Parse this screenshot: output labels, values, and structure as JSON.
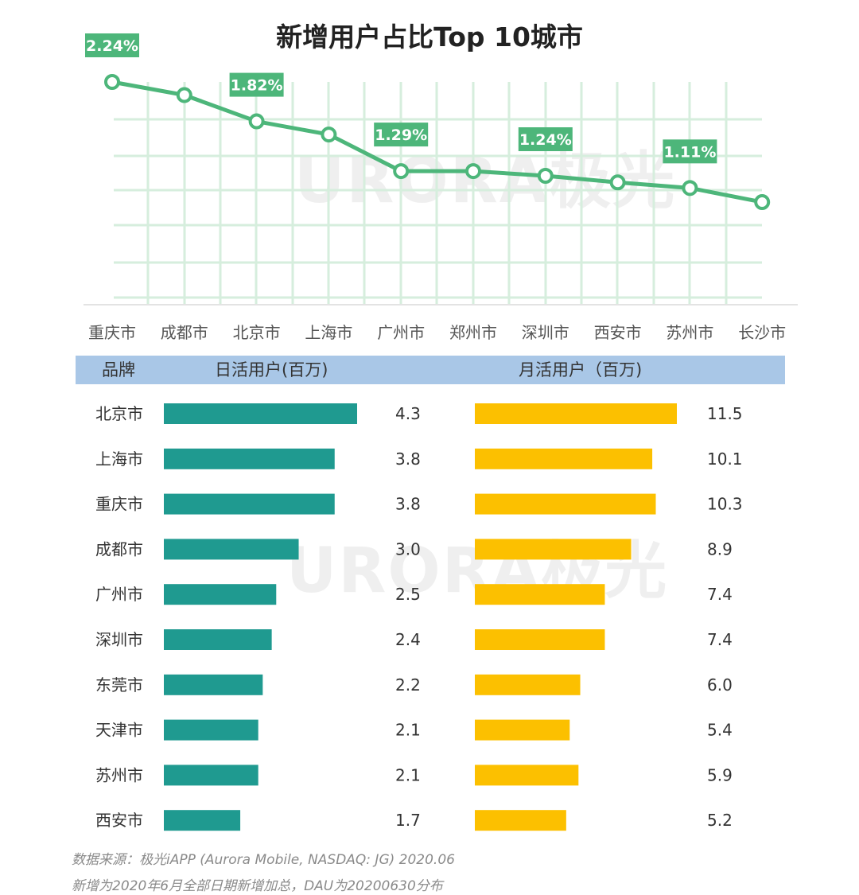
{
  "title": "新增用户占比Top 10城市",
  "chart_data": [
    {
      "type": "line",
      "title": "新增用户占比Top 10城市",
      "categories": [
        "重庆市",
        "成都市",
        "北京市",
        "上海市",
        "广州市",
        "郑州市",
        "深圳市",
        "西安市",
        "苏州市",
        "长沙市"
      ],
      "values": [
        2.24,
        2.1,
        1.82,
        1.68,
        1.29,
        1.29,
        1.24,
        1.17,
        1.11,
        0.96
      ],
      "data_labels": [
        {
          "index": 0,
          "text": "2.24%"
        },
        {
          "index": 2,
          "text": "1.82%"
        },
        {
          "index": 4,
          "text": "1.29%"
        },
        {
          "index": 6,
          "text": "1.24%"
        },
        {
          "index": 8,
          "text": "1.11%"
        }
      ],
      "grid": true,
      "color": "#4db67a",
      "label_color": "#4db67a"
    },
    {
      "type": "bar",
      "orientation": "horizontal",
      "table_headers": {
        "brand": "品牌",
        "dau": "日活用户(百万)",
        "mau": "月活用户（百万)"
      },
      "categories": [
        "北京市",
        "上海市",
        "重庆市",
        "成都市",
        "广州市",
        "深圳市",
        "东莞市",
        "天津市",
        "苏州市",
        "西安市"
      ],
      "series": [
        {
          "name": "日活用户(百万)",
          "values": [
            4.3,
            3.8,
            3.8,
            3.0,
            2.5,
            2.4,
            2.2,
            2.1,
            2.1,
            1.7
          ],
          "labels": [
            "4.3",
            "3.8",
            "3.8",
            "3.0",
            "2.5",
            "2.4",
            "2.2",
            "2.1",
            "2.1",
            "1.7"
          ],
          "color": "#1f9a90"
        },
        {
          "name": "月活用户（百万)",
          "values": [
            11.5,
            10.1,
            10.3,
            8.9,
            7.4,
            7.4,
            6.0,
            5.4,
            5.9,
            5.2
          ],
          "labels": [
            "11.5",
            "10.1",
            "10.3",
            "8.9",
            "7.4",
            "7.4",
            "6.0",
            "5.4",
            "5.9",
            "5.2"
          ],
          "color": "#fcc000"
        }
      ],
      "header_color": "#a9c7e7"
    }
  ],
  "watermark": "URORA极光",
  "footnotes": [
    "数据来源：极光iAPP (Aurora Mobile, NASDAQ: JG) 2020.06",
    "新增为2020年6月全部日期新增加总，DAU为20200630分布"
  ]
}
